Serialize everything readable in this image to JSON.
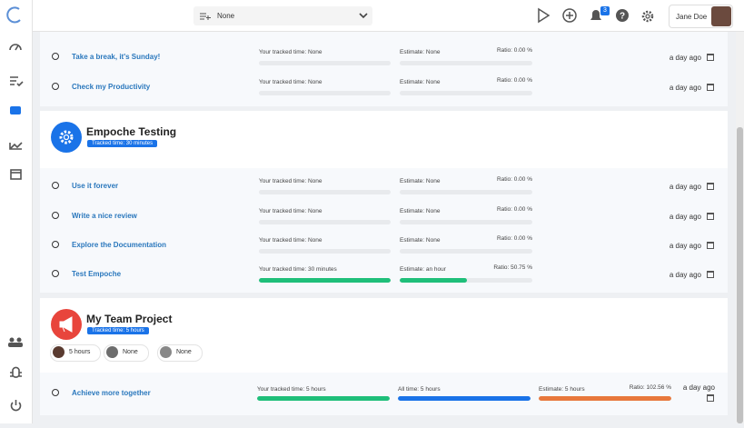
{
  "topbar": {
    "project_select": "None",
    "notification_count": "3",
    "user_name": "Jane Doe"
  },
  "projects": [
    {
      "tasks": [
        {
          "name": "Take a break, it's Sunday!",
          "tracked": "Your tracked time: None",
          "estimate": "Estimate: None",
          "ratio": "Ratio: 0.00 %",
          "time": "a day ago"
        },
        {
          "name": "Check my Productivity",
          "tracked": "Your tracked time: None",
          "estimate": "Estimate: None",
          "ratio": "Ratio: 0.00 %",
          "time": "a day ago"
        }
      ]
    },
    {
      "title": "Empoche Testing",
      "tracked_badge": "Tracked time: 30 minutes",
      "tasks": [
        {
          "name": "Use it forever",
          "tracked": "Your tracked time: None",
          "estimate": "Estimate: None",
          "ratio": "Ratio: 0.00 %",
          "time": "a day ago"
        },
        {
          "name": "Write a nice review",
          "tracked": "Your tracked time: None",
          "estimate": "Estimate: None",
          "ratio": "Ratio: 0.00 %",
          "time": "a day ago"
        },
        {
          "name": "Explore the Documentation",
          "tracked": "Your tracked time: None",
          "estimate": "Estimate: None",
          "ratio": "Ratio: 0.00 %",
          "time": "a day ago"
        },
        {
          "name": "Test Empoche",
          "tracked": "Your tracked time: 30 minutes",
          "estimate": "Estimate: an hour",
          "ratio": "Ratio: 50.75 %",
          "time": "a day ago"
        }
      ]
    },
    {
      "title": "My Team Project",
      "tracked_badge": "Tracked time: 5 hours",
      "members": [
        {
          "time": "5 hours"
        },
        {
          "time": "None"
        },
        {
          "time": "None"
        }
      ],
      "tasks": [
        {
          "name": "Achieve more together",
          "tracked": "Your tracked time: 5 hours",
          "all_time": "All time: 5 hours",
          "estimate": "Estimate: 5 hours",
          "ratio": "Ratio: 102.56 %",
          "time": "a day ago"
        }
      ]
    }
  ]
}
